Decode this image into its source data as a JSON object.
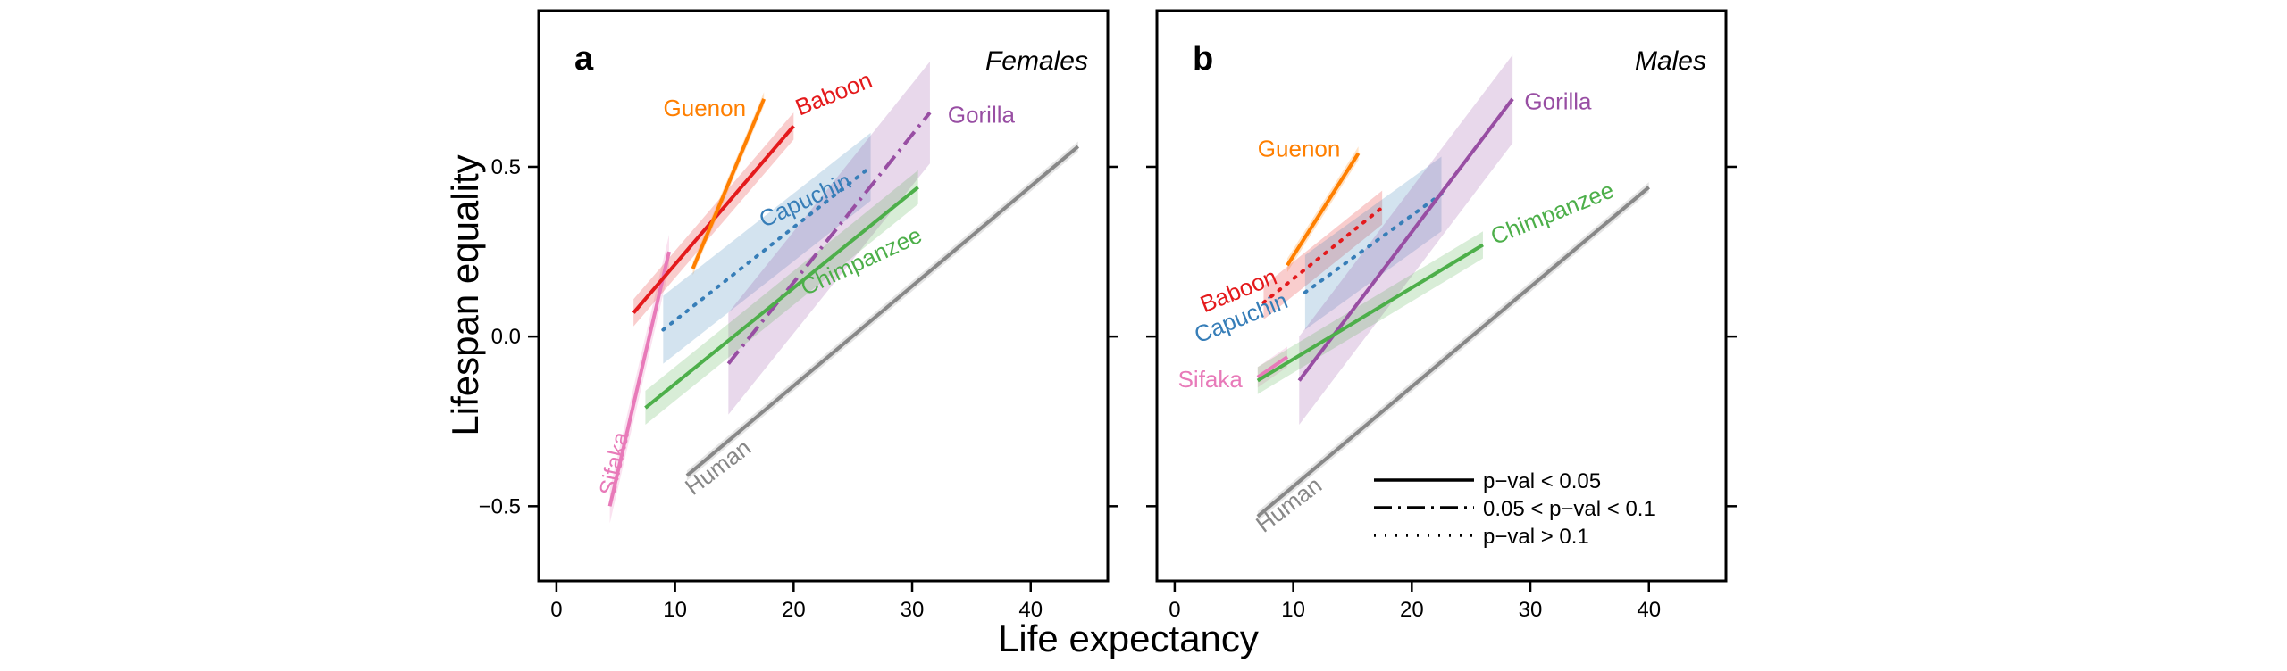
{
  "chart_data": {
    "type": "line",
    "xlabel": "Life expectancy",
    "ylabel": "Lifespan equality",
    "xlim": [
      -1.5,
      46.5
    ],
    "ylim": [
      -0.72,
      0.96
    ],
    "xticks": [
      0,
      10,
      20,
      30,
      40
    ],
    "yticks": [
      -0.5,
      0.0,
      0.5
    ],
    "ytick_labels": [
      "−0.5",
      "0.0",
      "0.5"
    ],
    "grid": false,
    "legend": {
      "position": "bottom-right of panel b",
      "entries": [
        {
          "style": "solid",
          "label": "p−val < 0.05"
        },
        {
          "style": "dashdot",
          "label": "0.05 < p−val < 0.1"
        },
        {
          "style": "dotted",
          "label": "p−val > 0.1"
        }
      ]
    },
    "panels": [
      {
        "letter": "a",
        "sex": "Females",
        "series": [
          {
            "name": "Sifaka",
            "color": "#e87ab9",
            "style": "solid",
            "x": [
              4.5,
              9.5
            ],
            "y": [
              -0.5,
              0.25
            ],
            "band": 0.05
          },
          {
            "name": "Baboon",
            "color": "#e41a1c",
            "style": "solid",
            "x": [
              6.5,
              20.0
            ],
            "y": [
              0.07,
              0.62
            ],
            "band": 0.04
          },
          {
            "name": "Guenon",
            "color": "#ff7f00",
            "style": "solid",
            "x": [
              11.5,
              17.5
            ],
            "y": [
              0.2,
              0.7
            ],
            "band": 0.02
          },
          {
            "name": "Capuchin",
            "color": "#377eb8",
            "style": "dotted",
            "x": [
              9.0,
              26.5
            ],
            "y": [
              0.02,
              0.5
            ],
            "band": 0.1
          },
          {
            "name": "Gorilla",
            "color": "#984ea3",
            "style": "dashdot",
            "x": [
              14.5,
              31.5
            ],
            "y": [
              -0.08,
              0.66
            ],
            "band": 0.15
          },
          {
            "name": "Chimpanzee",
            "color": "#4daf4a",
            "style": "solid",
            "x": [
              7.5,
              30.5
            ],
            "y": [
              -0.21,
              0.44
            ],
            "band": 0.05
          },
          {
            "name": "Human",
            "color": "#888888",
            "style": "solid",
            "x": [
              11.0,
              44.0
            ],
            "y": [
              -0.41,
              0.56
            ],
            "band": 0.015
          }
        ]
      },
      {
        "letter": "b",
        "sex": "Males",
        "series": [
          {
            "name": "Sifaka",
            "color": "#e87ab9",
            "style": "solid",
            "x": [
              7.0,
              9.5
            ],
            "y": [
              -0.12,
              -0.06
            ],
            "band": 0.03
          },
          {
            "name": "Guenon",
            "color": "#ff7f00",
            "style": "solid",
            "x": [
              9.5,
              15.5
            ],
            "y": [
              0.21,
              0.54
            ],
            "band": 0.02
          },
          {
            "name": "Baboon",
            "color": "#e41a1c",
            "style": "dotted",
            "x": [
              7.5,
              17.5
            ],
            "y": [
              0.1,
              0.38
            ],
            "band": 0.05
          },
          {
            "name": "Capuchin",
            "color": "#377eb8",
            "style": "dotted",
            "x": [
              11.0,
              22.5
            ],
            "y": [
              0.13,
              0.42
            ],
            "band": 0.11
          },
          {
            "name": "Gorilla",
            "color": "#984ea3",
            "style": "solid",
            "x": [
              10.5,
              28.5
            ],
            "y": [
              -0.13,
              0.7
            ],
            "band": 0.13
          },
          {
            "name": "Chimpanzee",
            "color": "#4daf4a",
            "style": "solid",
            "x": [
              7.0,
              26.0
            ],
            "y": [
              -0.13,
              0.27
            ],
            "band": 0.04
          },
          {
            "name": "Human",
            "color": "#888888",
            "style": "solid",
            "x": [
              7.0,
              40.0
            ],
            "y": [
              -0.53,
              0.44
            ],
            "band": 0.015
          }
        ]
      }
    ]
  }
}
